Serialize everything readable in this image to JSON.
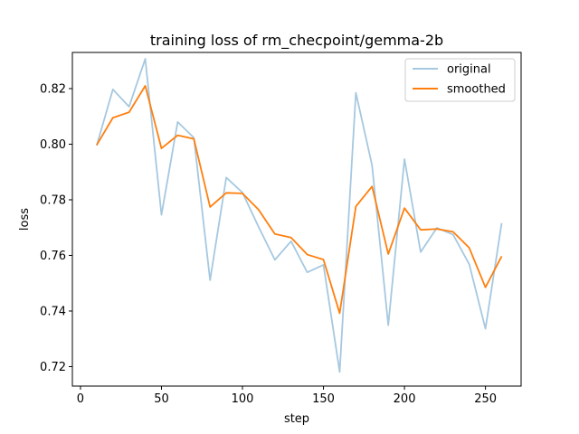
{
  "chart_data": {
    "type": "line",
    "title": "training loss of rm_checpoint/gemma-2b",
    "xlabel": "step",
    "ylabel": "loss",
    "xlim": [
      -5,
      272
    ],
    "ylim": [
      0.713,
      0.833
    ],
    "xticks": [
      0,
      50,
      100,
      150,
      200,
      250
    ],
    "yticks": [
      0.72,
      0.74,
      0.76,
      0.78,
      0.8,
      0.82
    ],
    "ytick_labels": [
      "0.72",
      "0.74",
      "0.76",
      "0.78",
      "0.80",
      "0.82"
    ],
    "grid": false,
    "legend": "top-right",
    "x": [
      10,
      20,
      30,
      40,
      50,
      60,
      70,
      80,
      90,
      100,
      110,
      120,
      130,
      140,
      150,
      160,
      170,
      180,
      190,
      200,
      210,
      220,
      230,
      240,
      250,
      260
    ],
    "series": [
      {
        "name": "original",
        "color": "#a6c8e0",
        "values": [
          0.7995,
          0.8197,
          0.8135,
          0.8307,
          0.7746,
          0.808,
          0.8023,
          0.7511,
          0.788,
          0.7826,
          0.7702,
          0.7584,
          0.7651,
          0.7539,
          0.7566,
          0.7181,
          0.8185,
          0.7924,
          0.7349,
          0.7946,
          0.7612,
          0.7699,
          0.7675,
          0.7568,
          0.7336,
          0.7716
        ]
      },
      {
        "name": "smoothed",
        "color": "#ff7f0e",
        "values": [
          0.7997,
          0.8095,
          0.8115,
          0.821,
          0.7985,
          0.8032,
          0.8019,
          0.7774,
          0.7825,
          0.7823,
          0.7764,
          0.7677,
          0.7664,
          0.7603,
          0.7585,
          0.7392,
          0.7776,
          0.7848,
          0.7605,
          0.777,
          0.7692,
          0.7695,
          0.7685,
          0.7627,
          0.7485,
          0.7597
        ]
      }
    ]
  }
}
